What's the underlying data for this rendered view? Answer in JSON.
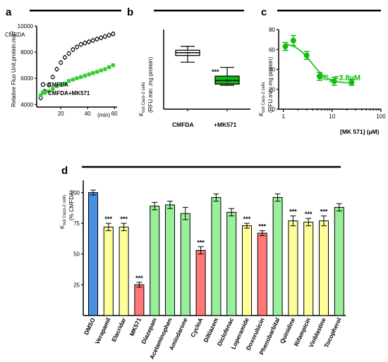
{
  "colors": {
    "green": "#33cc33",
    "bright_green": "#11bb11",
    "light_green": "#99ee99",
    "yellow": "#ffff99",
    "red": "#ff7777",
    "blue": "#4a90e2",
    "black": "#000000"
  },
  "chart_data": [
    {
      "panel": "a",
      "type": "scatter",
      "ylabel_line1": "CMFDA",
      "ylabel_line2": "Relative Fluo Unit.protein.mg",
      "ylabel_sup": "-1",
      "xlabel": "(min)",
      "xlim": [
        2,
        62
      ],
      "ylim": [
        3800,
        10000
      ],
      "xticks": [
        "20",
        "40",
        "60"
      ],
      "yticks": [
        "4000",
        "6000",
        "8000",
        "10000"
      ],
      "series": [
        {
          "name": "CMFDA",
          "marker": "open-circle",
          "x": [
            5,
            8,
            11,
            14,
            17,
            20,
            23,
            26,
            29,
            32,
            35,
            38,
            41,
            44,
            47,
            50,
            53,
            56,
            59
          ],
          "y": [
            4500,
            5000,
            5500,
            6100,
            6700,
            7200,
            7600,
            7900,
            8200,
            8400,
            8600,
            8700,
            8800,
            8900,
            9000,
            9100,
            9200,
            9300,
            9400
          ]
        },
        {
          "name": "CMFDA+MK571",
          "marker": "filled-square",
          "x": [
            5,
            8,
            11,
            14,
            17,
            20,
            23,
            26,
            29,
            32,
            35,
            38,
            41,
            44,
            47,
            50,
            53,
            56,
            59
          ],
          "y": [
            4700,
            4900,
            5000,
            5200,
            5400,
            5500,
            5600,
            5800,
            5900,
            6000,
            6100,
            6200,
            6300,
            6400,
            6500,
            6600,
            6700,
            6850,
            7000
          ]
        }
      ]
    },
    {
      "panel": "b",
      "type": "box",
      "ylabel_main": "K",
      "ylabel_sub": "out Caco-2 cells",
      "ylabel_line2": "(RFU.min  .mg   protein)",
      "categories": [
        "CMFDA",
        "+MK571"
      ],
      "ylim": [
        0,
        200
      ],
      "boxes": [
        {
          "min": 118,
          "q1": 135,
          "median": 142,
          "q3": 148,
          "max": 158,
          "mean": 140
        },
        {
          "min": 60,
          "q1": 63,
          "median": 72,
          "q3": 83,
          "max": 105,
          "mean": 72
        }
      ],
      "annotation": "***"
    },
    {
      "panel": "c",
      "type": "scatter",
      "ylabel_main": "K",
      "ylabel_sub": "out Caco-2 cells",
      "ylabel_line2": "(RFU.min  .mg   protein)",
      "xlabel": "[MK 571] (µM)",
      "xscale": "log",
      "xlim": [
        0.8,
        100
      ],
      "ylim": [
        0,
        80
      ],
      "xticks": [
        "1",
        "10",
        "100"
      ],
      "yticks": [
        "0",
        "20",
        "40",
        "60",
        "80"
      ],
      "annotation": "IC",
      "annotation_sub": "50",
      "annotation_value": "=3.8µM",
      "points": {
        "x": [
          1.1,
          1.6,
          3,
          5.5,
          11,
          25
        ],
        "y": [
          63,
          69,
          54,
          33,
          28,
          27
        ],
        "err": [
          4,
          5,
          4,
          4,
          4,
          3
        ]
      }
    },
    {
      "panel": "d",
      "type": "bar",
      "ylabel_main": "K",
      "ylabel_sub": "out Caco-2 cells",
      "ylabel_line2": "(% CMFDA)",
      "ylim": [
        0,
        110
      ],
      "yticks": [
        "25",
        "50",
        "75",
        "100"
      ],
      "categories": [
        "DMSO",
        "Verapamil",
        "Elacridar",
        "MK571",
        "Diazepam",
        "Acetaminophen",
        "Amiodarone",
        "CycloA",
        "Diltiazem",
        "Diclofenac",
        "Loperamide",
        "Doxorubicin",
        "Phenobarbital",
        "Quinidine",
        "Rifampicin",
        "Vinblastine",
        "Tocopherol"
      ],
      "values": [
        100,
        72,
        72,
        25,
        89,
        90,
        83,
        53,
        96,
        84,
        73,
        67,
        96,
        77,
        76,
        77,
        88
      ],
      "errors": [
        2,
        3,
        3,
        2,
        3,
        3,
        5,
        3,
        3,
        3,
        2,
        2,
        3,
        4,
        3,
        4,
        3
      ],
      "fill_colors": [
        "#4a90e2",
        "#ffff99",
        "#ffff99",
        "#ff7777",
        "#99ee99",
        "#99ee99",
        "#99ee99",
        "#ff7777",
        "#99ee99",
        "#99ee99",
        "#ffff99",
        "#ff7777",
        "#99ee99",
        "#ffff99",
        "#ffff99",
        "#ffff99",
        "#99ee99"
      ],
      "significance": [
        "",
        "***",
        "***",
        "***",
        "",
        "",
        "",
        "***",
        "",
        "",
        "***",
        "***",
        "",
        "***",
        "***",
        "***",
        ""
      ]
    }
  ]
}
